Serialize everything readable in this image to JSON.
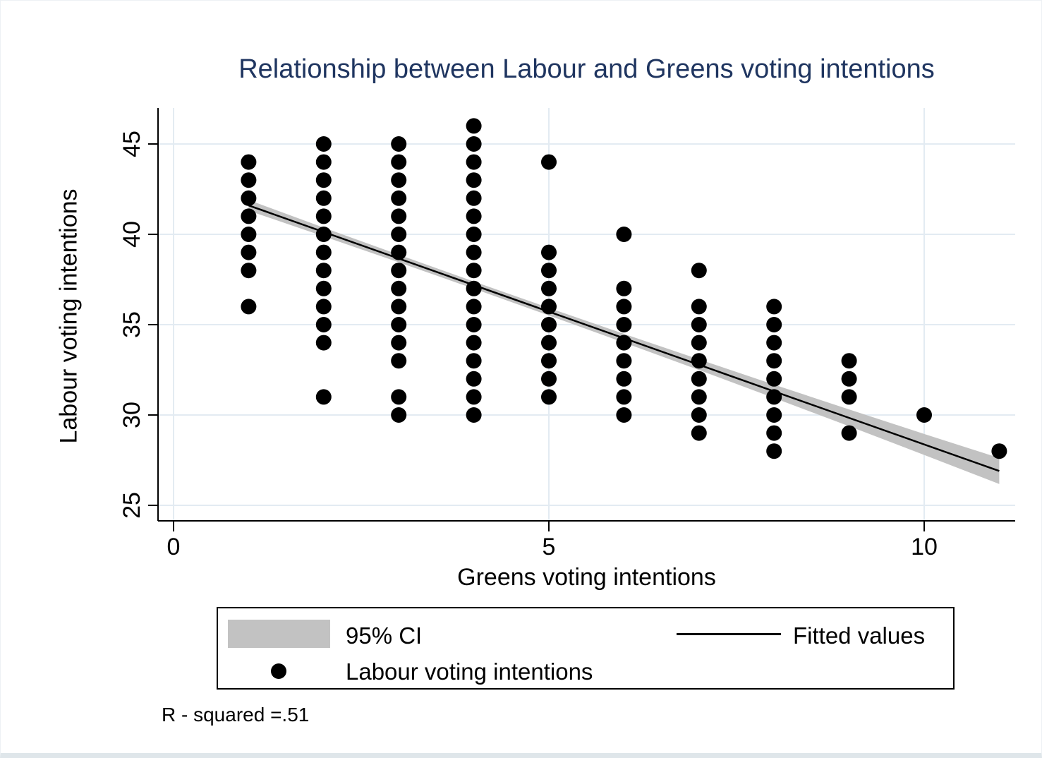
{
  "title": "Relationship between Labour and Greens voting intentions",
  "note": "R - squared =.51",
  "legend": {
    "ci_label": "95% CI",
    "fitted_label": "Fitted values",
    "scatter_label": "Labour voting intentions"
  },
  "colors": {
    "title": "#1f3560",
    "dot": "#000000",
    "grid": "#e3ebf2",
    "ci_band": "#c2c2c2",
    "fit_line": "#000000",
    "axis": "#000000",
    "tick_label": "#000000"
  },
  "chart_data": {
    "type": "scatter",
    "title": "Relationship between Labour and Greens voting intentions",
    "xlabel": "Greens voting intentions",
    "ylabel": "Labour voting intentions",
    "x_ticks": [
      0,
      5,
      10
    ],
    "y_ticks": [
      25,
      30,
      35,
      40,
      45
    ],
    "xlim": [
      -0.2,
      11.2
    ],
    "ylim": [
      24.1,
      47.0
    ],
    "grid": true,
    "legend_position": "bottom",
    "r_squared": 0.51,
    "series_points": [
      {
        "x": 1,
        "ys": [
          44,
          43,
          42,
          41,
          40,
          39,
          38,
          36
        ]
      },
      {
        "x": 2,
        "ys": [
          45,
          44,
          43,
          42,
          41,
          40,
          39,
          38,
          37,
          36,
          35,
          34,
          31
        ]
      },
      {
        "x": 3,
        "ys": [
          45,
          44,
          43,
          42,
          41,
          40,
          39,
          38,
          37,
          36,
          35,
          34,
          33,
          31,
          30
        ]
      },
      {
        "x": 4,
        "ys": [
          46,
          45,
          44,
          43,
          42,
          41,
          40,
          39,
          38,
          37,
          36,
          35,
          34,
          33,
          32,
          31,
          30
        ]
      },
      {
        "x": 5,
        "ys": [
          44,
          39,
          38,
          37,
          36,
          35,
          34,
          33,
          32,
          31
        ]
      },
      {
        "x": 6,
        "ys": [
          40,
          37,
          36,
          35,
          34,
          33,
          32,
          31,
          30
        ]
      },
      {
        "x": 7,
        "ys": [
          38,
          36,
          35,
          34,
          33,
          32,
          31,
          30,
          29
        ]
      },
      {
        "x": 8,
        "ys": [
          36,
          35,
          34,
          33,
          32,
          31,
          30,
          29,
          28
        ]
      },
      {
        "x": 9,
        "ys": [
          33,
          32,
          31,
          29
        ]
      },
      {
        "x": 10,
        "ys": [
          30
        ]
      },
      {
        "x": 11,
        "ys": [
          28
        ]
      }
    ],
    "fit": {
      "x": [
        1,
        11
      ],
      "y": [
        41.6,
        26.9
      ]
    },
    "ci_band": [
      {
        "x": 1,
        "lo": 41.31,
        "hi": 41.9
      },
      {
        "x": 2,
        "lo": 39.89,
        "hi": 40.37
      },
      {
        "x": 3,
        "lo": 38.45,
        "hi": 38.87
      },
      {
        "x": 4,
        "lo": 36.99,
        "hi": 37.39
      },
      {
        "x": 5,
        "lo": 35.51,
        "hi": 35.93
      },
      {
        "x": 6,
        "lo": 34.01,
        "hi": 34.49
      },
      {
        "x": 7,
        "lo": 32.49,
        "hi": 33.08
      },
      {
        "x": 8,
        "lo": 30.94,
        "hi": 31.68
      },
      {
        "x": 9,
        "lo": 29.38,
        "hi": 30.31
      },
      {
        "x": 10,
        "lo": 27.79,
        "hi": 28.95
      },
      {
        "x": 11,
        "lo": 26.18,
        "hi": 27.62
      }
    ]
  }
}
